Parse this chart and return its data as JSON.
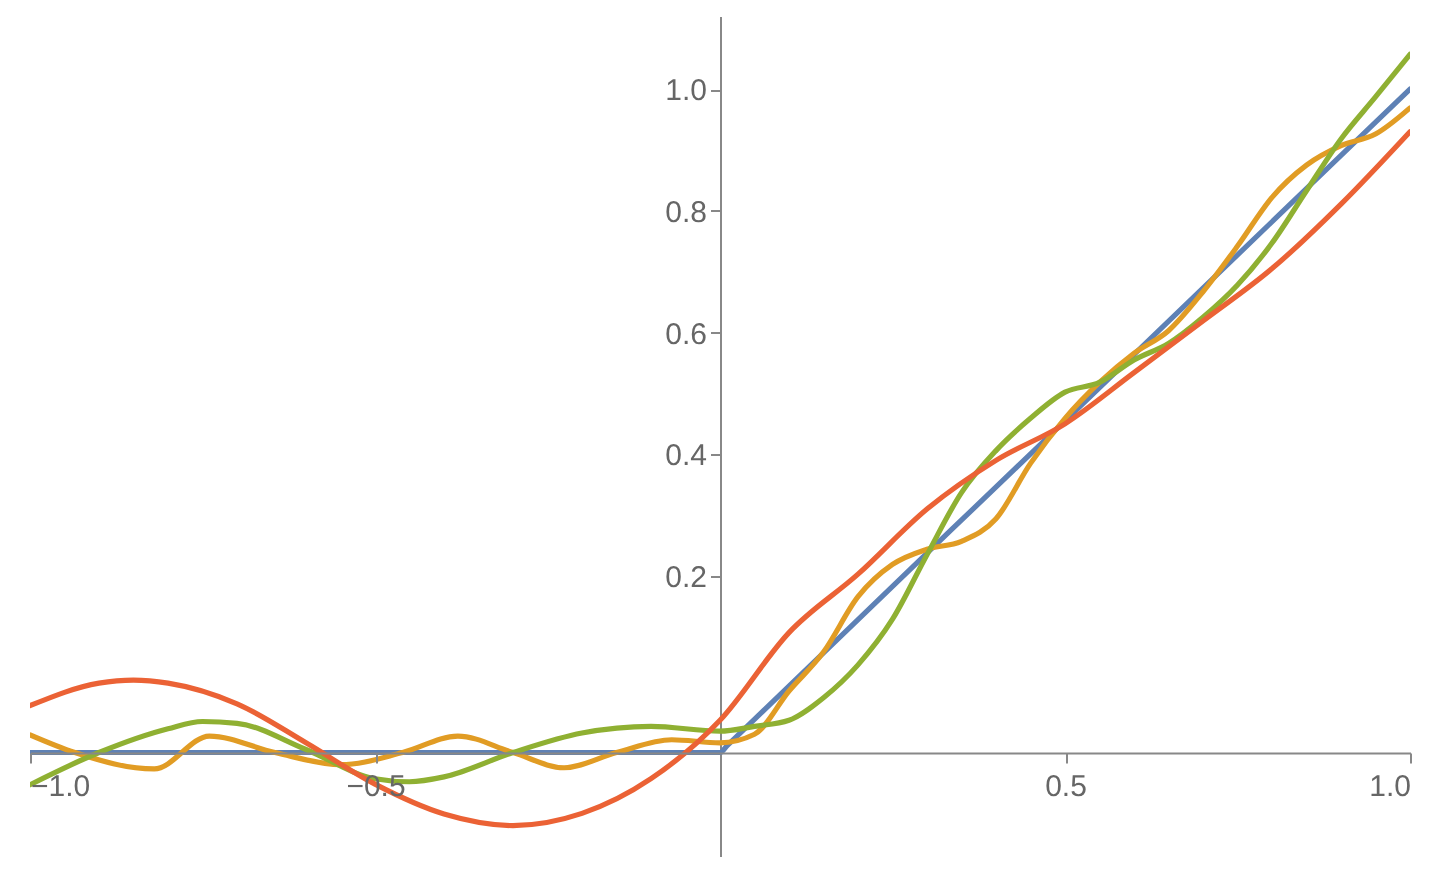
{
  "chart_data": {
    "type": "line",
    "xlim": [
      -1.0,
      1.0
    ],
    "ylim": [
      -0.26,
      1.12
    ],
    "xticks": [
      {
        "value": -1.0,
        "label": "−1.0"
      },
      {
        "value": -0.5,
        "label": "−0.5"
      },
      {
        "value": 0.5,
        "label": "0.5"
      },
      {
        "value": 1.0,
        "label": "1.0"
      }
    ],
    "yticks": [
      {
        "value": 0.2,
        "label": "0.2"
      },
      {
        "value": 0.4,
        "label": "0.4"
      },
      {
        "value": 0.6,
        "label": "0.6"
      },
      {
        "value": 0.8,
        "label": "0.8"
      },
      {
        "value": 1.0,
        "label": "1.0"
      }
    ],
    "grid": false,
    "legend": false,
    "series": [
      {
        "color": "#5e81b5",
        "x": [
          -1.0,
          0.0,
          0.01,
          0.5,
          1.0
        ],
        "values": [
          -0.09,
          -0.09,
          -0.079,
          0.455,
          1.0
        ]
      },
      {
        "color": "#e19c24",
        "x": [
          -1.0,
          -0.935,
          -0.82,
          -0.74,
          -0.645,
          -0.55,
          -0.46,
          -0.38,
          -0.3,
          -0.226,
          -0.15,
          -0.07,
          0.0,
          0.05,
          0.1,
          0.15,
          0.2,
          0.25,
          0.3,
          0.35,
          0.4,
          0.45,
          0.5,
          0.55,
          0.6,
          0.65,
          0.7,
          0.75,
          0.8,
          0.85,
          0.9,
          0.95,
          1.0
        ],
        "values": [
          -0.061,
          -0.09,
          -0.117,
          -0.063,
          -0.09,
          -0.11,
          -0.09,
          -0.063,
          -0.09,
          -0.115,
          -0.09,
          -0.069,
          -0.074,
          -0.06,
          0.011,
          0.075,
          0.166,
          0.219,
          0.244,
          0.257,
          0.294,
          0.385,
          0.459,
          0.518,
          0.566,
          0.603,
          0.667,
          0.742,
          0.822,
          0.875,
          0.907,
          0.926,
          0.969
        ]
      },
      {
        "color": "#8fb032",
        "x": [
          -1.0,
          -0.9,
          -0.8,
          -0.75,
          -0.7,
          -0.6,
          -0.5,
          -0.45,
          -0.4,
          -0.3,
          -0.2,
          -0.1,
          0.0,
          0.05,
          0.1,
          0.15,
          0.2,
          0.25,
          0.3,
          0.35,
          0.4,
          0.45,
          0.5,
          0.55,
          0.6,
          0.65,
          0.7,
          0.75,
          0.8,
          0.85,
          0.9,
          0.95,
          1.0
        ],
        "values": [
          -0.143,
          -0.09,
          -0.051,
          -0.039,
          -0.042,
          -0.085,
          -0.133,
          -0.138,
          -0.13,
          -0.09,
          -0.058,
          -0.047,
          -0.055,
          -0.047,
          -0.037,
          0.0,
          0.054,
          0.129,
          0.235,
          0.337,
          0.406,
          0.459,
          0.502,
          0.518,
          0.555,
          0.582,
          0.625,
          0.678,
          0.747,
          0.833,
          0.918,
          0.987,
          1.057
        ]
      },
      {
        "color": "#eb6235",
        "x": [
          -1.0,
          -0.9,
          -0.85,
          -0.8,
          -0.7,
          -0.6,
          -0.5,
          -0.4,
          -0.3,
          -0.2,
          -0.1,
          0.0,
          0.1,
          0.2,
          0.3,
          0.4,
          0.5,
          0.6,
          0.7,
          0.8,
          0.9,
          1.0
        ],
        "values": [
          -0.013,
          0.024,
          0.029,
          0.024,
          -0.01,
          -0.074,
          -0.142,
          -0.191,
          -0.21,
          -0.19,
          -0.133,
          -0.037,
          0.107,
          0.203,
          0.31,
          0.39,
          0.45,
          0.534,
          0.619,
          0.705,
          0.811,
          0.93
        ]
      }
    ]
  }
}
